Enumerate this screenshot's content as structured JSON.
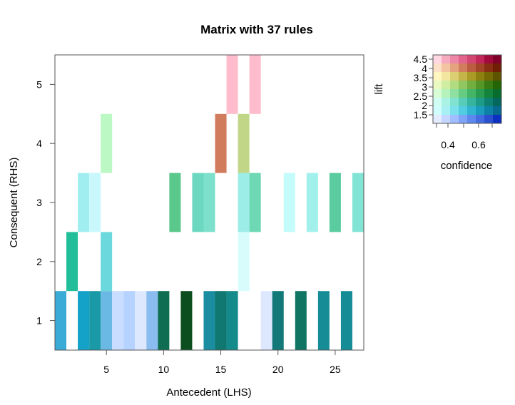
{
  "chart_data": {
    "type": "heatmap",
    "title": "Matrix with 37 rules",
    "xlabel": "Antecedent (LHS)",
    "ylabel": "Consequent (RHS)",
    "xlim": [
      0.5,
      27.5
    ],
    "ylim": [
      0.5,
      5.5
    ],
    "xticks": [
      5,
      10,
      15,
      20,
      25
    ],
    "yticks": [
      1,
      2,
      3,
      4,
      5
    ],
    "cells": [
      {
        "x": 1,
        "y": 1,
        "color": "#3aabd6"
      },
      {
        "x": 3,
        "y": 1,
        "color": "#14a2c8"
      },
      {
        "x": 4,
        "y": 1,
        "color": "#1a9aa6"
      },
      {
        "x": 5,
        "y": 1,
        "color": "#6ab8e4"
      },
      {
        "x": 6,
        "y": 1,
        "color": "#c8ddff"
      },
      {
        "x": 7,
        "y": 1,
        "color": "#b6d2ff"
      },
      {
        "x": 8,
        "y": 1,
        "color": "#dde8ff"
      },
      {
        "x": 9,
        "y": 1,
        "color": "#8abcf0"
      },
      {
        "x": 10,
        "y": 1,
        "color": "#0f6e52"
      },
      {
        "x": 12,
        "y": 1,
        "color": "#0c4e1e"
      },
      {
        "x": 14,
        "y": 1,
        "color": "#1a8ea0"
      },
      {
        "x": 15,
        "y": 1,
        "color": "#107870"
      },
      {
        "x": 16,
        "y": 1,
        "color": "#148a8a"
      },
      {
        "x": 19,
        "y": 1,
        "color": "#dde8ff"
      },
      {
        "x": 20,
        "y": 1,
        "color": "#127878"
      },
      {
        "x": 22,
        "y": 1,
        "color": "#117564"
      },
      {
        "x": 24,
        "y": 1,
        "color": "#168d96"
      },
      {
        "x": 26,
        "y": 1,
        "color": "#168d96"
      },
      {
        "x": 2,
        "y": 2,
        "color": "#22be9a"
      },
      {
        "x": 5,
        "y": 2,
        "color": "#6ad8dc"
      },
      {
        "x": 17,
        "y": 2,
        "color": "#d8fcfc"
      },
      {
        "x": 3,
        "y": 3,
        "color": "#a0eef0"
      },
      {
        "x": 4,
        "y": 3,
        "color": "#c8f8fc"
      },
      {
        "x": 11,
        "y": 3,
        "color": "#5ac88a"
      },
      {
        "x": 13,
        "y": 3,
        "color": "#6cd8c0"
      },
      {
        "x": 14,
        "y": 3,
        "color": "#7ce0cc"
      },
      {
        "x": 17,
        "y": 3,
        "color": "#9cece8"
      },
      {
        "x": 18,
        "y": 3,
        "color": "#6ed8b4"
      },
      {
        "x": 21,
        "y": 3,
        "color": "#c4fcfc"
      },
      {
        "x": 23,
        "y": 3,
        "color": "#a2f0ec"
      },
      {
        "x": 25,
        "y": 3,
        "color": "#5acca0"
      },
      {
        "x": 27,
        "y": 3,
        "color": "#82e4d4"
      },
      {
        "x": 5,
        "y": 4,
        "color": "#bcf8c4"
      },
      {
        "x": 15,
        "y": 4,
        "color": "#d27c5e"
      },
      {
        "x": 17,
        "y": 4,
        "color": "#c2d688"
      },
      {
        "x": 16,
        "y": 5,
        "color": "#ffbccc"
      },
      {
        "x": 18,
        "y": 5,
        "color": "#ffbccc"
      }
    ],
    "legend": {
      "xlabel": "confidence",
      "ylabel": "lift",
      "xticks": [
        "0.4",
        "0.6"
      ],
      "yticks": [
        "1.5",
        "2",
        "2.5",
        "3",
        "3.5",
        "4",
        "4.5"
      ],
      "grid_colors": [
        [
          "#ffd8e4",
          "#f6aac0",
          "#ee86a8",
          "#e2648c",
          "#d44672",
          "#c2265a",
          "#a00a3c",
          "#80002a"
        ],
        [
          "#fde0c8",
          "#f2c4a2",
          "#e4a27e",
          "#d27c5e",
          "#bc5c40",
          "#a44428",
          "#8a2e14",
          "#701e06"
        ],
        [
          "#fff6c0",
          "#f2e6a0",
          "#dcce72",
          "#c4b44a",
          "#aa9a26",
          "#8e8010",
          "#766a04",
          "#5e5400"
        ],
        [
          "#eaf8c2",
          "#d0eea2",
          "#b2dc80",
          "#92c660",
          "#72ae40",
          "#549628",
          "#3a7c14",
          "#246404"
        ],
        [
          "#d8fcd6",
          "#b6f2bc",
          "#8ee0a0",
          "#66cc82",
          "#44b466",
          "#2a9c50",
          "#14843c",
          "#086c2c"
        ],
        [
          "#d0fcf2",
          "#aaf2e4",
          "#80e2d0",
          "#58ccb8",
          "#36b4a0",
          "#1e9a88",
          "#0e8072",
          "#04685e"
        ],
        [
          "#d0fcfc",
          "#a6f0f4",
          "#7ae0ec",
          "#52cce0",
          "#30b4d0",
          "#1a9cbc",
          "#0e82a6",
          "#086a90"
        ],
        [
          "#e4ecff",
          "#c4d6ff",
          "#a0beff",
          "#7ea4f8",
          "#5e88ee",
          "#426ce0",
          "#2a50d0",
          "#0c30c0"
        ]
      ]
    }
  }
}
